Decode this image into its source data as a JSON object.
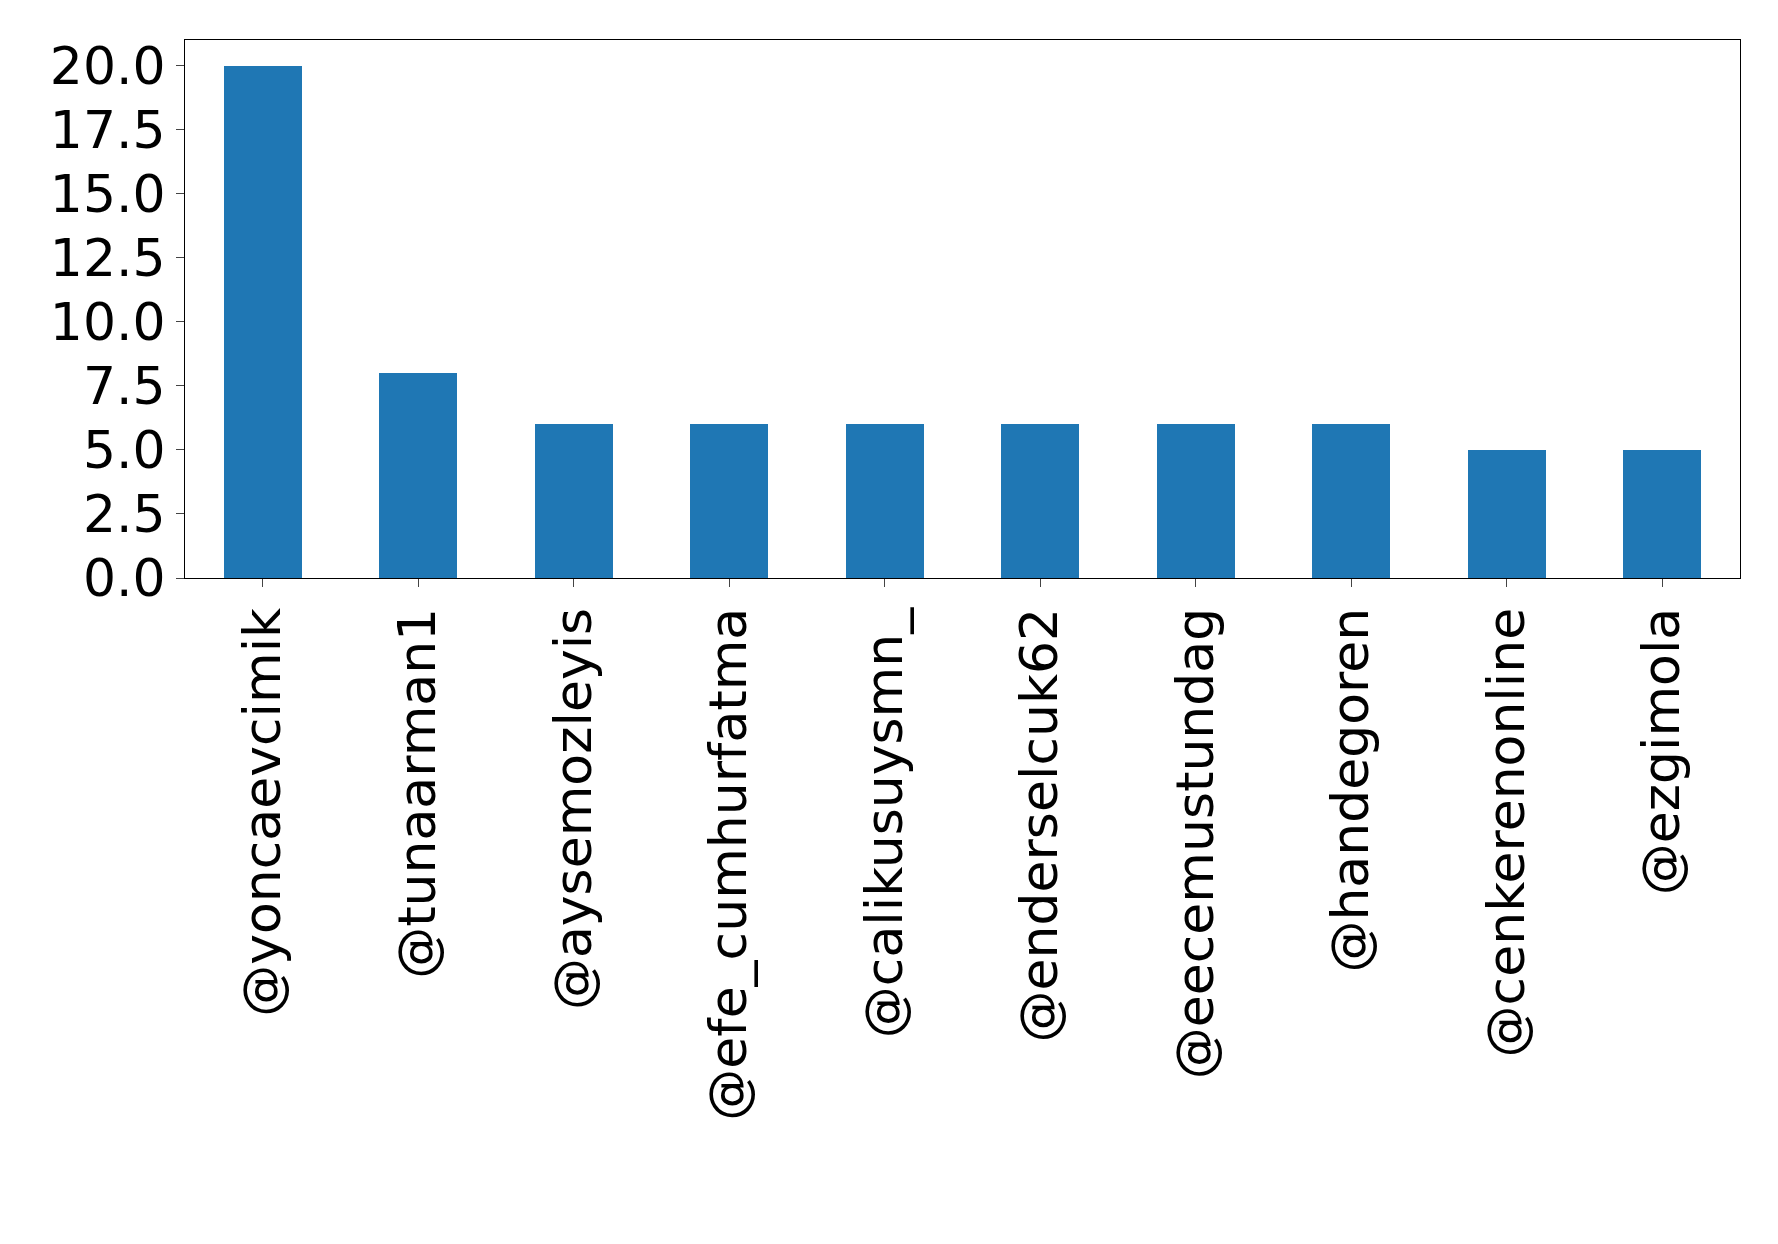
{
  "chart_data": {
    "type": "bar",
    "categories": [
      "@yoncaevcimik",
      "@tunaarman1",
      "@aysemozleyis",
      "@efe_cumhurfatma",
      "@calikusuysmn_",
      "@enderselcuk62",
      "@eecemustundag",
      "@handegoren",
      "@cenkerenonline",
      "@ezgimola"
    ],
    "series": [
      {
        "color": "#1f77b4",
        "values": [
          20,
          8,
          6,
          6,
          6,
          6,
          6,
          6,
          5,
          5
        ]
      }
    ],
    "ylim": [
      0,
      21
    ],
    "yticks": [
      {
        "value": 0,
        "label": "0.0"
      },
      {
        "value": 2.5,
        "label": "2.5"
      },
      {
        "value": 5,
        "label": "5.0"
      },
      {
        "value": 7.5,
        "label": "7.5"
      },
      {
        "value": 10,
        "label": "10.0"
      },
      {
        "value": 12.5,
        "label": "12.5"
      },
      {
        "value": 15,
        "label": "15.0"
      },
      {
        "value": 17.5,
        "label": "17.5"
      },
      {
        "value": 20,
        "label": "20.0"
      }
    ]
  }
}
